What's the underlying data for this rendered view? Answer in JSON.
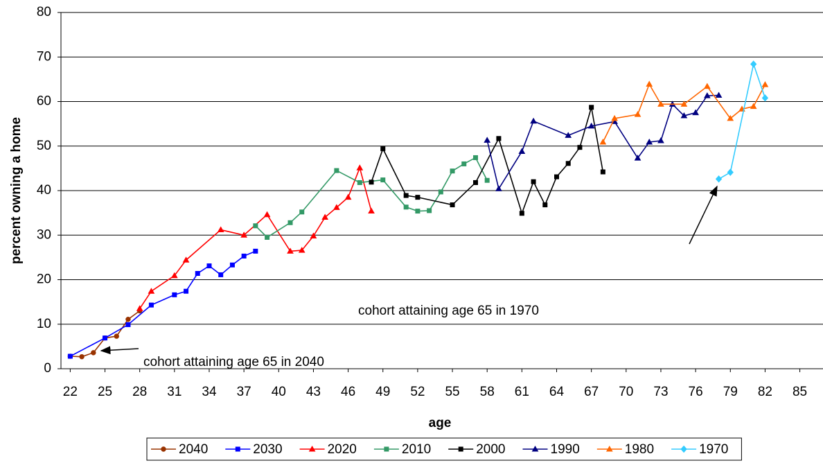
{
  "chart_data": {
    "type": "line",
    "x_label": "age",
    "y_label": "percent owning a home",
    "xlim": [
      21.2,
      87
    ],
    "xticks": [
      22,
      25,
      28,
      31,
      34,
      37,
      40,
      43,
      46,
      49,
      52,
      55,
      58,
      61,
      64,
      67,
      70,
      73,
      76,
      79,
      82,
      85
    ],
    "ylim": [
      0,
      80
    ],
    "yticks": [
      0,
      10,
      20,
      30,
      40,
      50,
      60,
      70,
      80
    ],
    "grid": true,
    "legend": "bottom",
    "series": [
      {
        "name": "2040",
        "color": "#993300",
        "marker": "circle",
        "x": [
          22,
          23,
          24,
          25,
          26,
          27,
          28
        ],
        "values": [
          2.8,
          2.7,
          3.6,
          6.9,
          7.3,
          11.1,
          13.0
        ]
      },
      {
        "name": "2030",
        "color": "#0000ff",
        "marker": "square",
        "x": [
          22,
          25,
          27,
          29,
          31,
          32,
          33,
          34,
          35,
          36,
          37,
          38
        ],
        "values": [
          2.8,
          6.9,
          9.9,
          14.3,
          16.6,
          17.4,
          21.4,
          23.1,
          21.1,
          23.3,
          25.3,
          26.4
        ]
      },
      {
        "name": "2020",
        "color": "#ff0000",
        "marker": "triangle",
        "x": [
          28,
          29,
          31,
          32,
          35,
          37,
          39,
          41,
          42,
          43,
          44,
          45,
          46,
          47,
          48
        ],
        "values": [
          13.5,
          17.4,
          20.9,
          24.4,
          31.2,
          30.0,
          34.6,
          26.4,
          26.6,
          29.8,
          34.0,
          36.2,
          38.5,
          45.1,
          35.4
        ]
      },
      {
        "name": "2010",
        "color": "#339966",
        "marker": "square",
        "x": [
          38,
          39,
          41,
          42,
          45,
          47,
          49,
          51,
          52,
          53,
          54,
          55,
          56,
          57,
          58
        ],
        "values": [
          32.1,
          29.5,
          32.8,
          35.2,
          44.5,
          41.8,
          42.4,
          36.3,
          35.4,
          35.5,
          39.7,
          44.4,
          46.0,
          47.4,
          42.3
        ]
      },
      {
        "name": "2000",
        "color": "#000000",
        "marker": "square",
        "x": [
          48,
          49,
          51,
          52,
          55,
          57,
          59,
          61,
          62,
          63,
          64,
          65,
          66,
          67,
          68
        ],
        "values": [
          41.9,
          49.4,
          38.9,
          38.5,
          36.8,
          41.8,
          51.7,
          34.9,
          42.0,
          36.8,
          43.1,
          46.1,
          49.7,
          58.7,
          44.2
        ]
      },
      {
        "name": "1990",
        "color": "#000080",
        "marker": "triangle",
        "x": [
          58,
          59,
          61,
          62,
          65,
          67,
          69,
          71,
          72,
          73,
          74,
          75,
          76,
          77,
          78
        ],
        "values": [
          51.3,
          40.4,
          48.8,
          55.6,
          52.4,
          54.5,
          55.5,
          47.3,
          50.9,
          51.2,
          59.4,
          56.8,
          57.5,
          61.3,
          61.4
        ]
      },
      {
        "name": "1980",
        "color": "#ff6600",
        "marker": "triangle",
        "x": [
          68,
          69,
          71,
          72,
          73,
          75,
          77,
          79,
          80,
          81,
          82
        ],
        "values": [
          50.9,
          56.2,
          57.1,
          63.9,
          59.4,
          59.4,
          63.4,
          56.2,
          58.3,
          58.9,
          63.8
        ]
      },
      {
        "name": "1970",
        "color": "#33ccff",
        "marker": "diamond",
        "x": [
          78,
          79,
          81,
          82
        ],
        "values": [
          42.6,
          44.1,
          68.4,
          60.8
        ]
      }
    ],
    "annotations": [
      {
        "text": "cohort attaining age 65 in 2040"
      },
      {
        "text": "cohort attaining age 65 in 1970"
      }
    ]
  }
}
